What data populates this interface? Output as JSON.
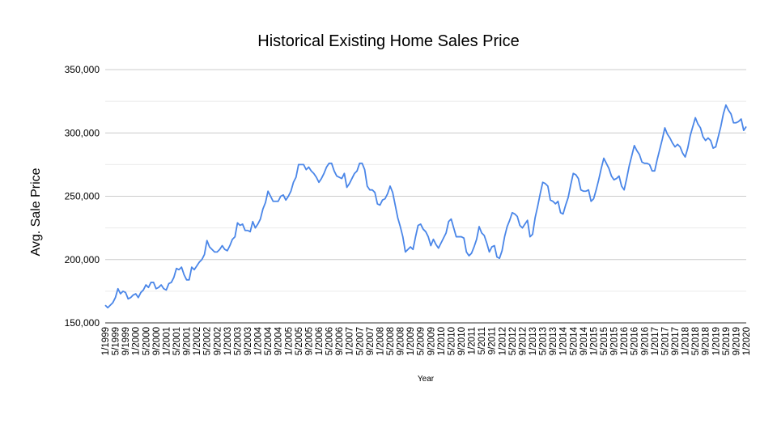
{
  "chart_data": {
    "type": "line",
    "title": "Historical Existing Home Sales Price",
    "xlabel": "Year",
    "ylabel": "Avg. Sale Price",
    "ylim": [
      150000,
      350000
    ],
    "yticks": [
      "150,000",
      "200,000",
      "250,000",
      "300,000",
      "350,000"
    ],
    "grid": true,
    "legend": "none",
    "line_color": "#4a86e8",
    "x_tick_labels": [
      "1/1999",
      "5/1999",
      "9/1999",
      "1/2000",
      "5/2000",
      "9/2000",
      "1/2001",
      "5/2001",
      "9/2001",
      "1/2002",
      "5/2002",
      "9/2002",
      "1/2003",
      "5/2003",
      "9/2003",
      "1/2004",
      "5/2004",
      "9/2004",
      "1/2005",
      "5/2005",
      "9/2005",
      "1/2006",
      "5/2006",
      "9/2006",
      "1/2007",
      "5/2007",
      "9/2007",
      "1/2008",
      "5/2008",
      "9/2008",
      "1/2009",
      "5/2009",
      "9/2009",
      "1/2010",
      "5/2010",
      "9/2010",
      "1/2011",
      "5/2011",
      "9/2011",
      "1/2012",
      "5/2012",
      "9/2012",
      "1/2013",
      "5/2013",
      "9/2013",
      "1/2014",
      "5/2014",
      "9/2014",
      "1/2015",
      "5/2015",
      "9/2015",
      "1/2016",
      "5/2016",
      "9/2016",
      "1/2017",
      "5/2017",
      "9/2017",
      "1/2018",
      "5/2018",
      "9/2018",
      "1/2019",
      "5/2019",
      "9/2019",
      "1/2020"
    ],
    "series": [
      {
        "x_start": "1/1999",
        "x_step": "month",
        "values": [
          164000,
          162000,
          164000,
          166000,
          170000,
          177000,
          173000,
          175000,
          174000,
          169000,
          170000,
          172000,
          173000,
          170000,
          174000,
          176000,
          180000,
          178000,
          182000,
          182000,
          177000,
          178000,
          180000,
          177000,
          176000,
          181000,
          182000,
          186000,
          193000,
          192000,
          194000,
          188000,
          184000,
          184000,
          194000,
          192000,
          195000,
          198000,
          200000,
          204000,
          215000,
          210000,
          208000,
          206000,
          206000,
          208000,
          211000,
          208000,
          207000,
          211000,
          216000,
          218000,
          229000,
          227000,
          228000,
          223000,
          223000,
          222000,
          230000,
          225000,
          228000,
          232000,
          240000,
          245000,
          254000,
          250000,
          246000,
          246000,
          246000,
          250000,
          251000,
          247000,
          250000,
          254000,
          261000,
          265000,
          275000,
          275000,
          275000,
          271000,
          273000,
          270000,
          268000,
          265000,
          261000,
          264000,
          268000,
          273000,
          276000,
          276000,
          270000,
          266000,
          265000,
          264000,
          268000,
          257000,
          260000,
          264000,
          268000,
          270000,
          276000,
          276000,
          271000,
          258000,
          255000,
          255000,
          253000,
          244000,
          243000,
          247000,
          248000,
          252000,
          258000,
          253000,
          243000,
          233000,
          226000,
          218000,
          206000,
          208000,
          210000,
          208000,
          218000,
          227000,
          228000,
          224000,
          222000,
          218000,
          211000,
          216000,
          212000,
          209000,
          213000,
          217000,
          221000,
          230000,
          232000,
          225000,
          218000,
          218000,
          218000,
          217000,
          206000,
          203000,
          205000,
          210000,
          216000,
          226000,
          221000,
          219000,
          213000,
          206000,
          210000,
          211000,
          202000,
          201000,
          207000,
          218000,
          226000,
          231000,
          237000,
          236000,
          234000,
          227000,
          225000,
          228000,
          231000,
          218000,
          220000,
          233000,
          242000,
          252000,
          261000,
          260000,
          258000,
          247000,
          246000,
          244000,
          246000,
          237000,
          236000,
          243000,
          249000,
          259000,
          268000,
          267000,
          264000,
          255000,
          254000,
          254000,
          255000,
          246000,
          248000,
          255000,
          263000,
          272000,
          280000,
          276000,
          272000,
          266000,
          263000,
          264000,
          266000,
          258000,
          255000,
          264000,
          274000,
          282000,
          290000,
          286000,
          283000,
          277000,
          276000,
          276000,
          275000,
          270000,
          270000,
          279000,
          287000,
          295000,
          304000,
          299000,
          296000,
          292000,
          289000,
          291000,
          289000,
          284000,
          281000,
          288000,
          298000,
          305000,
          312000,
          307000,
          304000,
          297000,
          294000,
          296000,
          294000,
          288000,
          289000,
          297000,
          305000,
          315000,
          322000,
          318000,
          315000,
          308000,
          308000,
          309000,
          311000,
          302000,
          305000
        ]
      }
    ]
  }
}
